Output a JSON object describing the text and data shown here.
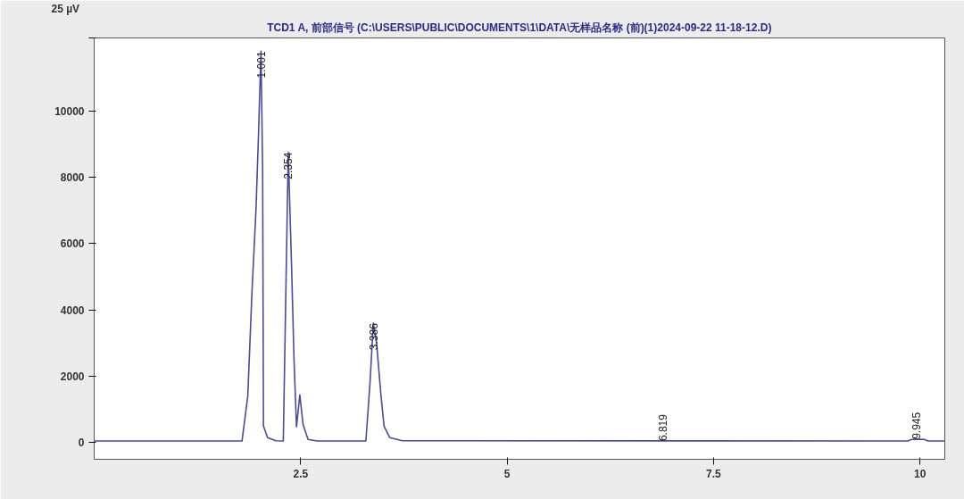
{
  "chart_data": {
    "type": "line",
    "title": "TCD1 A, 前部信号 (C:\\USERS\\PUBLIC\\DOCUMENTS\\1\\DATA\\无样品名称 (前)(1)2024-09-22 11-18-12.D)",
    "x": [
      0.0,
      1.79,
      1.86,
      1.91,
      1.96,
      1.99,
      2.02,
      2.04,
      2.05,
      2.1,
      2.2,
      2.29,
      2.35,
      2.39,
      2.42,
      2.45,
      2.49,
      2.53,
      2.59,
      2.7,
      3.29,
      3.34,
      3.38,
      3.42,
      3.47,
      3.51,
      3.58,
      3.73,
      9.85,
      9.9,
      9.95,
      10.05,
      10.1,
      10.3
    ],
    "series": [
      {
        "color": "#4a4a9e",
        "values": [
          50,
          50,
          1400,
          4500,
          7050,
          9300,
          11800,
          8200,
          500,
          150,
          60,
          50,
          8750,
          5350,
          2500,
          480,
          1440,
          540,
          100,
          50,
          50,
          1800,
          3600,
          3000,
          1500,
          500,
          150,
          60,
          50,
          100,
          110,
          100,
          50,
          50
        ]
      }
    ],
    "annotations": [
      {
        "text": "1.001",
        "x": 2.02,
        "y": 11800
      },
      {
        "text": "2.354",
        "x": 2.35,
        "y": 8750
      },
      {
        "text": "3.386",
        "x": 3.38,
        "y": 3600
      },
      {
        "text": "6.819",
        "x": 6.88,
        "y": 50
      },
      {
        "text": "9.945",
        "x": 9.95,
        "y": 110
      }
    ],
    "xlim": [
      0,
      10.3
    ],
    "xticks": [
      2.5,
      5,
      7.5,
      10
    ],
    "ylim": [
      -500,
      12200
    ],
    "yticks": [
      0,
      2000,
      4000,
      6000,
      8000,
      10000,
      {
        "value": 12200,
        "label": null
      }
    ],
    "ylabel": "25 µV",
    "grid": false,
    "marker": "none",
    "line_style": "solid"
  }
}
